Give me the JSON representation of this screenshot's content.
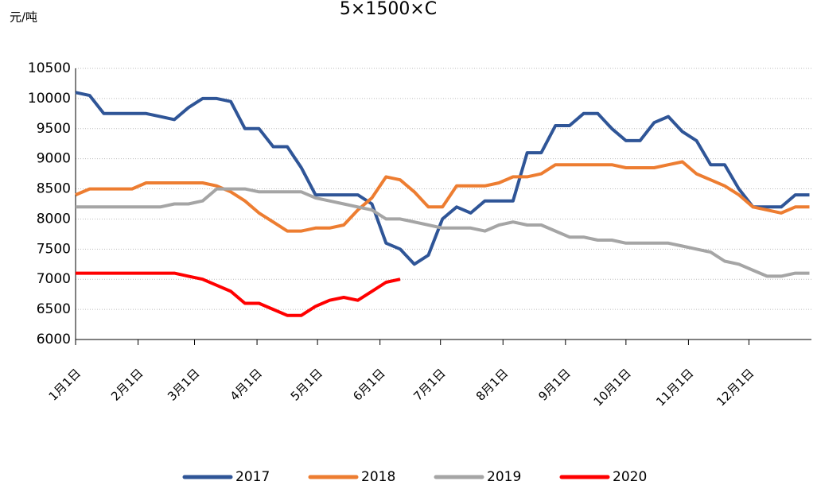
{
  "chart_data": {
    "type": "line",
    "title": "5×1500×C",
    "y_label": "元/吨",
    "x": [
      0,
      7,
      14,
      21,
      28,
      35,
      42,
      49,
      56,
      63,
      70,
      77,
      84,
      91,
      98,
      105,
      112,
      119,
      126,
      133,
      140,
      147,
      154,
      161,
      168,
      175,
      182,
      189,
      196,
      203,
      210,
      217,
      224,
      231,
      238,
      245,
      252,
      259,
      266,
      273,
      280,
      287,
      294,
      301,
      308,
      315,
      322,
      329,
      336,
      343,
      350,
      357,
      364
    ],
    "xlim": [
      0,
      365
    ],
    "xticks": [
      {
        "value": 0,
        "label": "1月1日"
      },
      {
        "value": 31,
        "label": "2月1日"
      },
      {
        "value": 59,
        "label": "3月1日"
      },
      {
        "value": 90,
        "label": "4月1日"
      },
      {
        "value": 120,
        "label": "5月1日"
      },
      {
        "value": 151,
        "label": "6月1日"
      },
      {
        "value": 181,
        "label": "7月1日"
      },
      {
        "value": 212,
        "label": "8月1日"
      },
      {
        "value": 243,
        "label": "9月1日"
      },
      {
        "value": 273,
        "label": "10月1日"
      },
      {
        "value": 304,
        "label": "11月1日"
      },
      {
        "value": 334,
        "label": "12月1日"
      }
    ],
    "ylim": [
      6000,
      10500
    ],
    "yticks": [
      6000,
      6500,
      7000,
      7500,
      8000,
      8500,
      9000,
      9500,
      10000,
      10500
    ],
    "grid": true,
    "legend": "bottom",
    "series": [
      {
        "name": "2017",
        "color": "#2f5597",
        "values": [
          10100,
          10050,
          9750,
          9750,
          9750,
          9750,
          9700,
          9650,
          9850,
          10000,
          10000,
          9950,
          9500,
          9500,
          9200,
          9200,
          8850,
          8400,
          8400,
          8400,
          8400,
          8250,
          7600,
          7500,
          7250,
          7400,
          8000,
          8200,
          8100,
          8300,
          8300,
          8300,
          9100,
          9100,
          9550,
          9550,
          9750,
          9750,
          9500,
          9300,
          9300,
          9600,
          9700,
          9450,
          9300,
          8900,
          8900,
          8500,
          8200,
          8200,
          8200,
          8400,
          8400
        ]
      },
      {
        "name": "2018",
        "color": "#ed7d31",
        "values": [
          8400,
          8500,
          8500,
          8500,
          8500,
          8600,
          8600,
          8600,
          8600,
          8600,
          8550,
          8450,
          8300,
          8100,
          7950,
          7800,
          7800,
          7850,
          7850,
          7900,
          8150,
          8350,
          8700,
          8650,
          8450,
          8200,
          8200,
          8550,
          8550,
          8550,
          8600,
          8700,
          8700,
          8750,
          8900,
          8900,
          8900,
          8900,
          8900,
          8850,
          8850,
          8850,
          8900,
          8950,
          8750,
          8650,
          8550,
          8400,
          8200,
          8150,
          8100,
          8200,
          8200
        ]
      },
      {
        "name": "2019",
        "color": "#a5a5a5",
        "values": [
          8200,
          8200,
          8200,
          8200,
          8200,
          8200,
          8200,
          8250,
          8250,
          8300,
          8500,
          8500,
          8500,
          8450,
          8450,
          8450,
          8450,
          8350,
          8300,
          8250,
          8200,
          8150,
          8000,
          8000,
          7950,
          7900,
          7850,
          7850,
          7850,
          7800,
          7900,
          7950,
          7900,
          7900,
          7800,
          7700,
          7700,
          7650,
          7650,
          7600,
          7600,
          7600,
          7600,
          7550,
          7500,
          7450,
          7300,
          7250,
          7150,
          7050,
          7050,
          7100,
          7100
        ]
      },
      {
        "name": "2020",
        "color": "#ff0000",
        "values": [
          7100,
          7100,
          7100,
          7100,
          7100,
          7100,
          7100,
          7100,
          7050,
          7000,
          6900,
          6800,
          6600,
          6600,
          6500,
          6400,
          6400,
          6550,
          6650,
          6700,
          6650,
          6800,
          6950,
          7000,
          null,
          null,
          null,
          null,
          null,
          null,
          null,
          null,
          null,
          null,
          null,
          null,
          null,
          null,
          null,
          null,
          null,
          null,
          null,
          null,
          null,
          null,
          null,
          null,
          null,
          null,
          null,
          null,
          null
        ]
      }
    ]
  }
}
